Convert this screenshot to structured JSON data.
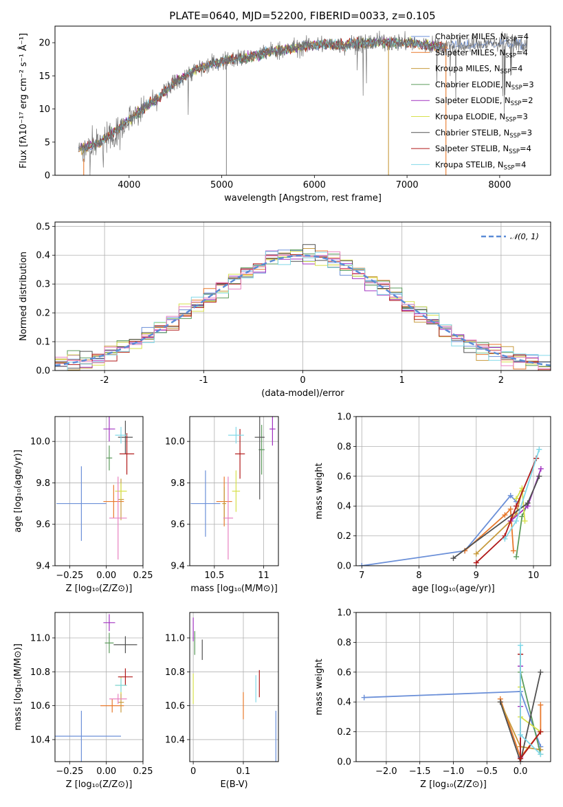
{
  "figure_title": "PLATE=0640, MJD=52200, FIBERID=0033, z=0.105",
  "colors": {
    "Chabrier MILES": "#6a8fd8",
    "Salpeter MILES": "#e8782a",
    "Kroupa MILES": "#c79a3c",
    "Chabrier ELODIE": "#5a9a5a",
    "Salpeter ELODIE": "#a030c0",
    "Kroupa ELODIE": "#d6e04a",
    "Chabrier STELIB": "#505050",
    "Salpeter STELIB": "#b01818",
    "Kroupa STELIB": "#80d8e8",
    "extra_pink": "#e880c0",
    "normal_line": "#5b8bd6"
  },
  "chart_data": [
    {
      "id": "spectrum",
      "type": "line",
      "title": "",
      "xlabel": "wavelength [Angstrom, rest frame]",
      "ylabel": "Flux [fλ10⁻¹⁷ erg cm⁻² s⁻¹ Å⁻¹]",
      "xlim": [
        3200,
        8550
      ],
      "ylim": [
        0,
        22.5
      ],
      "xticks": [
        4000,
        5000,
        6000,
        7000,
        8000
      ],
      "yticks": [
        0,
        5,
        10,
        15,
        20
      ],
      "legend": [
        "Chabrier MILES, N_SSP=4",
        "Salpeter MILES, N_SSP=4",
        "Kroupa MILES, N_SSP=4",
        "Chabrier ELODIE, N_SSP=3",
        "Salpeter ELODIE, N_SSP=2",
        "Kroupa ELODIE, N_SSP=3",
        "Chabrier STELIB, N_SSP=3",
        "Salpeter STELIB, N_SSP=4",
        "Kroupa STELIB, N_SSP=4"
      ],
      "legend_placement": "upper-right",
      "continuum": [
        [
          3450,
          3.8
        ],
        [
          3700,
          5.0
        ],
        [
          3900,
          7.2
        ],
        [
          4100,
          9.5
        ],
        [
          4300,
          11.5
        ],
        [
          4500,
          14.0
        ],
        [
          4700,
          15.8
        ],
        [
          4900,
          16.8
        ],
        [
          5100,
          17.5
        ],
        [
          5300,
          17.8
        ],
        [
          5500,
          18.6
        ],
        [
          5700,
          19.0
        ],
        [
          5900,
          19.5
        ],
        [
          6100,
          19.8
        ],
        [
          6300,
          19.6
        ],
        [
          6500,
          19.9
        ],
        [
          6700,
          20.1
        ],
        [
          7000,
          20.0
        ],
        [
          7300,
          19.5
        ],
        [
          7600,
          19.5
        ],
        [
          8000,
          20.0
        ],
        [
          8300,
          19.6
        ]
      ],
      "spikes": [
        [
          5050,
          0
        ],
        [
          6800,
          0
        ],
        [
          7420,
          0
        ],
        [
          3500,
          0
        ],
        [
          3550,
          1.5
        ]
      ]
    },
    {
      "id": "residuals",
      "type": "histogram",
      "title": "",
      "xlabel": "(data-model)/error",
      "ylabel": "Normed distribution",
      "xlim": [
        -2.5,
        2.5
      ],
      "ylim": [
        0,
        0.515
      ],
      "xticks": [
        -2,
        -1,
        0,
        1,
        2
      ],
      "yticks": [
        0.0,
        0.1,
        0.2,
        0.3,
        0.4,
        0.5
      ],
      "legend": [
        "𝒩(0, 1)"
      ],
      "legend_placement": "upper-right",
      "bin_width": 0.125,
      "grid": true
    },
    {
      "id": "age_vs_Z",
      "type": "errorbar",
      "xlabel": "Z [log₁₀(Z/Z⊙)]",
      "ylabel": "age  [log₁₀(age/yr)]",
      "xlim": [
        -0.35,
        0.25
      ],
      "ylim": [
        9.4,
        10.12
      ],
      "xticks": [
        -0.25,
        0.0,
        0.25
      ],
      "xticklabels": [
        "−0.25",
        "0.00",
        "0.25"
      ],
      "yticks": [
        9.4,
        9.6,
        9.8,
        10.0
      ],
      "grid": true,
      "points": [
        {
          "series": "Chabrier MILES",
          "x": -0.17,
          "xerr": 0.17,
          "y": 9.7,
          "yerr": 0.18
        },
        {
          "series": "Salpeter MILES",
          "x": 0.05,
          "xerr": 0.07,
          "y": 9.71,
          "yerr": 0.08
        },
        {
          "series": "Kroupa MILES",
          "x": 0.1,
          "xerr": 0.02,
          "y": 9.72,
          "yerr": 0.1
        },
        {
          "series": "Chabrier ELODIE",
          "x": 0.02,
          "xerr": 0.02,
          "y": 9.92,
          "yerr": 0.06
        },
        {
          "series": "Salpeter ELODIE",
          "x": 0.02,
          "xerr": 0.04,
          "y": 10.06,
          "yerr": 0.06
        },
        {
          "series": "Kroupa ELODIE",
          "x": 0.1,
          "xerr": 0.04,
          "y": 9.76,
          "yerr": 0.04
        },
        {
          "series": "Chabrier STELIB",
          "x": 0.13,
          "xerr": 0.05,
          "y": 10.02,
          "yerr": 0.08
        },
        {
          "series": "Salpeter STELIB",
          "x": 0.14,
          "xerr": 0.05,
          "y": 9.94,
          "yerr": 0.1
        },
        {
          "series": "Kroupa STELIB",
          "x": 0.1,
          "xerr": 0.04,
          "y": 10.03,
          "yerr": 0.04
        },
        {
          "series": "extra_pink",
          "x": 0.08,
          "xerr": 0.06,
          "y": 9.63,
          "yerr": 0.2
        }
      ]
    },
    {
      "id": "age_vs_mass",
      "type": "errorbar",
      "xlabel": "mass [log₁₀(M/M⊙)]",
      "ylabel": "",
      "xlim": [
        10.25,
        11.15
      ],
      "ylim": [
        9.4,
        10.12
      ],
      "xticks": [
        10.5,
        11.0
      ],
      "yticks": [
        9.4,
        9.6,
        9.8,
        10.0
      ],
      "grid": true,
      "points": [
        {
          "series": "Chabrier MILES",
          "x": 10.41,
          "xerr": 0.15,
          "y": 9.7,
          "yerr": 0.16
        },
        {
          "series": "Salpeter MILES",
          "x": 10.6,
          "xerr": 0.08,
          "y": 9.71,
          "yerr": 0.12
        },
        {
          "series": "Kroupa MILES",
          "x": 10.6,
          "xerr": 0.02,
          "y": 9.7,
          "yerr": 0.08
        },
        {
          "series": "Chabrier ELODIE",
          "x": 10.98,
          "xerr": 0.03,
          "y": 9.96,
          "yerr": 0.12
        },
        {
          "series": "Salpeter ELODIE",
          "x": 11.09,
          "xerr": 0.03,
          "y": 10.06,
          "yerr": 0.08
        },
        {
          "series": "Kroupa ELODIE",
          "x": 10.72,
          "xerr": 0.04,
          "y": 9.76,
          "yerr": 0.1
        },
        {
          "series": "Chabrier STELIB",
          "x": 10.96,
          "xerr": 0.05,
          "y": 10.02,
          "yerr": 0.3
        },
        {
          "series": "Salpeter STELIB",
          "x": 10.76,
          "xerr": 0.05,
          "y": 9.94,
          "yerr": 0.12
        },
        {
          "series": "Kroupa STELIB",
          "x": 10.72,
          "xerr": 0.08,
          "y": 10.03,
          "yerr": 0.04
        },
        {
          "series": "extra_pink",
          "x": 10.64,
          "xerr": 0.05,
          "y": 9.63,
          "yerr": 0.2
        }
      ]
    },
    {
      "id": "massweight_vs_age",
      "type": "line",
      "xlabel": "age  [log₁₀(age/yr)]",
      "ylabel": "mass weight",
      "xlim": [
        6.9,
        10.3
      ],
      "ylim": [
        0,
        1
      ],
      "xticks": [
        7,
        8,
        9,
        10
      ],
      "yticks": [
        0.0,
        0.2,
        0.4,
        0.6,
        0.8,
        1.0
      ],
      "grid": true,
      "series": [
        {
          "name": "Chabrier MILES",
          "x": [
            7.0,
            8.8,
            9.6,
            9.7
          ],
          "y": [
            0.0,
            0.1,
            0.47,
            0.43
          ]
        },
        {
          "name": "Salpeter MILES",
          "x": [
            8.8,
            9.5,
            9.6,
            9.65
          ],
          "y": [
            0.1,
            0.34,
            0.38,
            0.1
          ]
        },
        {
          "name": "Kroupa MILES",
          "x": [
            9.0,
            9.6,
            9.7,
            9.8
          ],
          "y": [
            0.08,
            0.3,
            0.35,
            0.5
          ]
        },
        {
          "name": "Chabrier ELODIE",
          "x": [
            9.7,
            9.8,
            10.1
          ],
          "y": [
            0.06,
            0.33,
            0.6
          ]
        },
        {
          "name": "Salpeter ELODIE",
          "x": [
            9.6,
            9.9,
            10.13
          ],
          "y": [
            0.3,
            0.4,
            0.65
          ]
        },
        {
          "name": "Kroupa ELODIE",
          "x": [
            9.7,
            9.8,
            9.85
          ],
          "y": [
            0.45,
            0.52,
            0.3
          ]
        },
        {
          "name": "Chabrier STELIB",
          "x": [
            8.6,
            9.9,
            10.1
          ],
          "y": [
            0.05,
            0.42,
            0.6
          ]
        },
        {
          "name": "Salpeter STELIB",
          "x": [
            9.0,
            9.5,
            9.7,
            10.05
          ],
          "y": [
            0.02,
            0.2,
            0.4,
            0.72
          ]
        },
        {
          "name": "Kroupa STELIB",
          "x": [
            9.5,
            9.7,
            10.1
          ],
          "y": [
            0.18,
            0.3,
            0.78
          ]
        }
      ]
    },
    {
      "id": "mass_vs_Z",
      "type": "errorbar",
      "xlabel": "Z [log₁₀(Z/Z⊙)]",
      "ylabel": "mass [log₁₀(M/M⊙)]",
      "xlim": [
        -0.35,
        0.25
      ],
      "ylim": [
        10.27,
        11.15
      ],
      "xticks": [
        -0.25,
        0.0,
        0.25
      ],
      "xticklabels": [
        "−0.25",
        "0.00",
        "0.25"
      ],
      "yticks": [
        10.4,
        10.6,
        10.8,
        11.0
      ],
      "grid": true,
      "points": [
        {
          "series": "Chabrier MILES",
          "x": -0.17,
          "xerr": 0.27,
          "y": 10.42,
          "yerr": 0.15
        },
        {
          "series": "Salpeter MILES",
          "x": 0.04,
          "xerr": 0.08,
          "y": 10.6,
          "yerr": 0.04
        },
        {
          "series": "Kroupa MILES",
          "x": 0.1,
          "xerr": 0.02,
          "y": 10.62,
          "yerr": 0.06
        },
        {
          "series": "Chabrier ELODIE",
          "x": 0.02,
          "xerr": 0.03,
          "y": 10.97,
          "yerr": 0.06
        },
        {
          "series": "Salpeter ELODIE",
          "x": 0.02,
          "xerr": 0.04,
          "y": 11.09,
          "yerr": 0.05
        },
        {
          "series": "Kroupa ELODIE",
          "x": 0.1,
          "xerr": 0.04,
          "y": 10.72,
          "yerr": 0.05
        },
        {
          "series": "Chabrier STELIB",
          "x": 0.13,
          "xerr": 0.08,
          "y": 10.96,
          "yerr": 0.05
        },
        {
          "series": "Salpeter STELIB",
          "x": 0.13,
          "xerr": 0.05,
          "y": 10.77,
          "yerr": 0.05
        },
        {
          "series": "Kroupa STELIB",
          "x": 0.1,
          "xerr": 0.04,
          "y": 10.72,
          "yerr": 0.04
        },
        {
          "series": "extra_pink",
          "x": 0.08,
          "xerr": 0.06,
          "y": 10.64,
          "yerr": 0.03
        }
      ]
    },
    {
      "id": "mass_vs_ebv",
      "type": "errorbar",
      "xlabel": "E(B-V)",
      "ylabel": "",
      "xlim": [
        -0.007,
        0.17
      ],
      "ylim": [
        10.27,
        11.15
      ],
      "xticks": [
        0.0,
        0.1
      ],
      "yticks": [
        10.4,
        10.6,
        10.8,
        11.0
      ],
      "grid": true,
      "points": [
        {
          "series": "Chabrier MILES",
          "x": 0.165,
          "xerr": 0.0,
          "y": 10.42,
          "yerr": 0.15
        },
        {
          "series": "Salpeter MILES",
          "x": 0.1,
          "xerr": 0.0,
          "y": 10.6,
          "yerr": 0.08
        },
        {
          "series": "Chabrier ELODIE",
          "x": 0.003,
          "xerr": 0.0,
          "y": 10.97,
          "yerr": 0.07
        },
        {
          "series": "Salpeter ELODIE",
          "x": 0.0,
          "xerr": 0.0,
          "y": 11.05,
          "yerr": 0.07
        },
        {
          "series": "Kroupa ELODIE",
          "x": 0.0,
          "xerr": 0.0,
          "y": 10.7,
          "yerr": 0.09
        },
        {
          "series": "Chabrier STELIB",
          "x": 0.018,
          "xerr": 0.0,
          "y": 10.93,
          "yerr": 0.06
        },
        {
          "series": "Salpeter STELIB",
          "x": 0.132,
          "xerr": 0.0,
          "y": 10.73,
          "yerr": 0.08
        },
        {
          "series": "Kroupa STELIB",
          "x": 0.125,
          "xerr": 0.0,
          "y": 10.7,
          "yerr": 0.08
        }
      ]
    },
    {
      "id": "massweight_vs_Z",
      "type": "line",
      "xlabel": "Z [log₁₀(Z/Z⊙)]",
      "ylabel": "mass weight",
      "xlim": [
        -2.45,
        0.45
      ],
      "ylim": [
        0,
        1
      ],
      "xticks": [
        -2.0,
        -1.5,
        -1.0,
        -0.5,
        0.0
      ],
      "xticklabels": [
        "−2.0",
        "−1.5",
        "−1.0",
        "−0.5",
        "0.0"
      ],
      "yticks": [
        0.0,
        0.2,
        0.4,
        0.6,
        0.8,
        1.0
      ],
      "grid": true,
      "series": [
        {
          "name": "Chabrier MILES",
          "x": [
            -2.33,
            0.0,
            0.3
          ],
          "y": [
            0.43,
            0.47,
            0.1
          ]
        },
        {
          "name": "Salpeter MILES",
          "x": [
            -0.3,
            0.0,
            0.3,
            0.3
          ],
          "y": [
            0.42,
            0.03,
            0.2,
            0.38
          ]
        },
        {
          "name": "Kroupa MILES",
          "x": [
            -0.3,
            0.0,
            0.3
          ],
          "y": [
            0.4,
            0.1,
            0.08
          ]
        },
        {
          "name": "Chabrier ELODIE",
          "x": [
            0.0,
            0.0,
            0.3
          ],
          "y": [
            0.72,
            0.6,
            0.05
          ]
        },
        {
          "name": "Salpeter ELODIE",
          "x": [
            0.0,
            0.0,
            0.0
          ],
          "y": [
            0.64,
            0.37,
            0.03
          ]
        },
        {
          "name": "Kroupa ELODIE",
          "x": [
            0.0,
            0.0,
            0.3
          ],
          "y": [
            0.5,
            0.3,
            0.2
          ]
        },
        {
          "name": "Chabrier STELIB",
          "x": [
            -0.3,
            0.0,
            0.3
          ],
          "y": [
            0.4,
            0.0,
            0.6
          ]
        },
        {
          "name": "Salpeter STELIB",
          "x": [
            0.0,
            0.0,
            0.3
          ],
          "y": [
            0.72,
            0.02,
            0.2
          ]
        },
        {
          "name": "Kroupa STELIB",
          "x": [
            0.0,
            0.0,
            0.3
          ],
          "y": [
            0.78,
            0.18,
            0.05
          ]
        }
      ]
    }
  ]
}
